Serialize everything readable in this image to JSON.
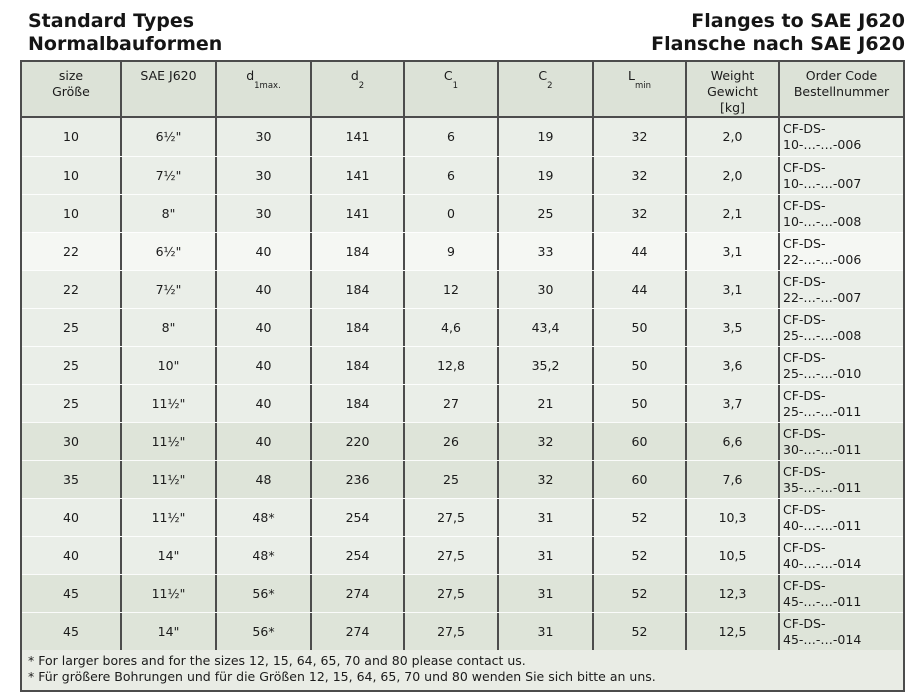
{
  "header": {
    "title_en": "Standard Types",
    "title_de": "Normalbauformen",
    "right_en": "Flanges to SAE J620",
    "right_de": "Flansche nach SAE J620"
  },
  "colors": {
    "border": "#4c4c4c",
    "text": "#1b1b1b",
    "header_bg": "#dce2d7",
    "row_base": "#eaeee8",
    "row_light": "#f5f7f3",
    "row_dark": "#dee4d9",
    "footnote_bg": "#e9ece5"
  },
  "table": {
    "columns": [
      {
        "id": "size",
        "lines": [
          "size",
          "Größe"
        ]
      },
      {
        "id": "sae-j620",
        "lines": [
          "SAE J620"
        ]
      },
      {
        "id": "d1max",
        "base": "d",
        "sub": "1max."
      },
      {
        "id": "d2",
        "base": "d",
        "sub": "2"
      },
      {
        "id": "c1",
        "base": "C",
        "sub": "1"
      },
      {
        "id": "c2",
        "base": "C",
        "sub": "2"
      },
      {
        "id": "lmin",
        "base": "L",
        "sub": "min"
      },
      {
        "id": "weight",
        "lines": [
          "Weight",
          "Gewicht",
          "[kg]"
        ]
      },
      {
        "id": "order-code",
        "lines": [
          "Order Code",
          "Bestellnummer"
        ]
      }
    ],
    "rows": [
      {
        "band": "base",
        "cells": [
          "10",
          "6½\"",
          "30",
          "141",
          "6",
          "19",
          "32",
          "2,0",
          "CF-DS-10-…-…-006"
        ]
      },
      {
        "band": "base",
        "cells": [
          "10",
          "7½\"",
          "30",
          "141",
          "6",
          "19",
          "32",
          "2,0",
          "CF-DS-10-…-…-007"
        ]
      },
      {
        "band": "base",
        "cells": [
          "10",
          "8\"",
          "30",
          "141",
          "0",
          "25",
          "32",
          "2,1",
          "CF-DS-10-…-…-008"
        ]
      },
      {
        "band": "light",
        "cells": [
          "22",
          "6½\"",
          "40",
          "184",
          "9",
          "33",
          "44",
          "3,1",
          "CF-DS-22-…-…-006"
        ]
      },
      {
        "band": "base",
        "cells": [
          "22",
          "7½\"",
          "40",
          "184",
          "12",
          "30",
          "44",
          "3,1",
          "CF-DS-22-…-…-007"
        ]
      },
      {
        "band": "base",
        "cells": [
          "25",
          "8\"",
          "40",
          "184",
          "4,6",
          "43,4",
          "50",
          "3,5",
          "CF-DS-25-…-…-008"
        ]
      },
      {
        "band": "base",
        "cells": [
          "25",
          "10\"",
          "40",
          "184",
          "12,8",
          "35,2",
          "50",
          "3,6",
          "CF-DS-25-…-…-010"
        ]
      },
      {
        "band": "base",
        "cells": [
          "25",
          "11½\"",
          "40",
          "184",
          "27",
          "21",
          "50",
          "3,7",
          "CF-DS-25-…-…-011"
        ]
      },
      {
        "band": "dark",
        "cells": [
          "30",
          "11½\"",
          "40",
          "220",
          "26",
          "32",
          "60",
          "6,6",
          "CF-DS-30-…-…-011"
        ]
      },
      {
        "band": "dark",
        "cells": [
          "35",
          "11½\"",
          "48",
          "236",
          "25",
          "32",
          "60",
          "7,6",
          "CF-DS-35-…-…-011"
        ]
      },
      {
        "band": "base",
        "cells": [
          "40",
          "11½\"",
          "48*",
          "254",
          "27,5",
          "31",
          "52",
          "10,3",
          "CF-DS-40-…-…-011"
        ]
      },
      {
        "band": "base",
        "cells": [
          "40",
          "14\"",
          "48*",
          "254",
          "27,5",
          "31",
          "52",
          "10,5",
          "CF-DS-40-…-…-014"
        ]
      },
      {
        "band": "dark",
        "cells": [
          "45",
          "11½\"",
          "56*",
          "274",
          "27,5",
          "31",
          "52",
          "12,3",
          "CF-DS-45-…-…-011"
        ]
      },
      {
        "band": "dark",
        "cells": [
          "45",
          "14\"",
          "56*",
          "274",
          "27,5",
          "31",
          "52",
          "12,5",
          "CF-DS-45-…-…-014"
        ]
      }
    ]
  },
  "footnotes": [
    "* For larger bores and for the sizes 12, 15, 64, 65, 70 and 80 please contact us.",
    "* Für größere Bohrungen und für die Größen 12, 15, 64, 65, 70 und 80 wenden Sie sich bitte an uns."
  ]
}
